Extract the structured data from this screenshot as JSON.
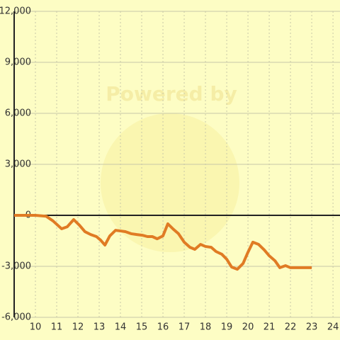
{
  "chart_data": {
    "type": "line",
    "watermark": "Powered by",
    "x": [
      9.0,
      10.0,
      10.5,
      10.83,
      11.23,
      11.5,
      11.8,
      12.07,
      12.33,
      12.6,
      12.87,
      13.07,
      13.27,
      13.5,
      13.77,
      14.0,
      14.23,
      14.5,
      14.77,
      15.03,
      15.27,
      15.5,
      15.73,
      16.0,
      16.23,
      16.5,
      16.73,
      17.0,
      17.27,
      17.5,
      17.77,
      18.0,
      18.27,
      18.5,
      18.77,
      19.0,
      19.23,
      19.5,
      19.77,
      20.0,
      20.23,
      20.5,
      20.77,
      21.0,
      21.27,
      21.5,
      21.77,
      22.0,
      23.0
    ],
    "series": [
      {
        "color": "#e07b24",
        "values": [
          0,
          0,
          -50,
          -330,
          -790,
          -670,
          -250,
          -580,
          -960,
          -1130,
          -1250,
          -1460,
          -1750,
          -1210,
          -880,
          -920,
          -960,
          -1080,
          -1130,
          -1170,
          -1250,
          -1250,
          -1380,
          -1210,
          -500,
          -830,
          -1080,
          -1580,
          -1880,
          -2000,
          -1710,
          -1830,
          -1880,
          -2130,
          -2290,
          -2580,
          -3040,
          -3170,
          -2830,
          -2170,
          -1580,
          -1710,
          -2040,
          -2380,
          -2670,
          -3080,
          -2960,
          -3080,
          -3080
        ]
      }
    ],
    "xlim": [
      9.0,
      24.33
    ],
    "xticks": [
      10,
      11,
      12,
      13,
      14,
      15,
      16,
      17,
      18,
      19,
      20,
      21,
      22,
      23,
      24
    ],
    "ylim": [
      -6000,
      12000
    ],
    "yticks": [
      {
        "value": -6000,
        "label": "-6,000"
      },
      {
        "value": -3000,
        "label": "-3,000"
      },
      0,
      {
        "value": 3000,
        "label": "3,000"
      },
      {
        "value": 6000,
        "label": "6,000"
      },
      {
        "value": 9000,
        "label": "9,000"
      },
      {
        "value": 12000,
        "label": "12,000"
      }
    ],
    "grid": true
  }
}
